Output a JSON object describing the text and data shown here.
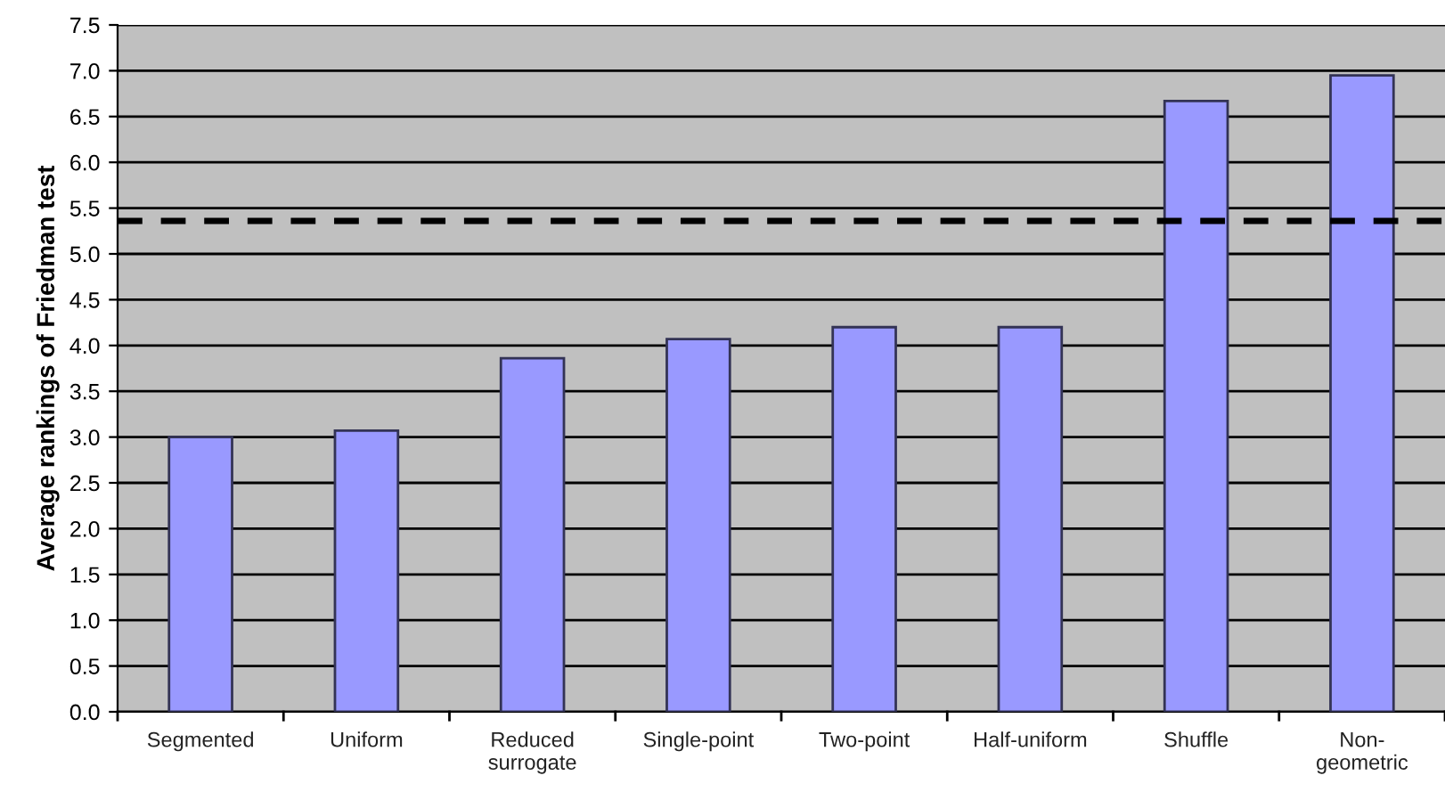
{
  "chart_data": {
    "type": "bar",
    "ylabel": "Average rankings of Friedman test",
    "categories": [
      "Segmented",
      "Uniform",
      "Reduced\nsurrogate",
      "Single-point",
      "Two-point",
      "Half-uniform",
      "Shuffle",
      "Non-\ngeometric"
    ],
    "values": [
      3.0,
      3.07,
      3.86,
      4.07,
      4.2,
      4.2,
      6.67,
      6.95
    ],
    "color": "#9999ff",
    "ylim": [
      0,
      7.5
    ],
    "yticks": [
      {
        "value": 0,
        "label": "0.0"
      },
      {
        "value": 0.5,
        "label": "0.5"
      },
      {
        "value": 1,
        "label": "1.0"
      },
      {
        "value": 1.5,
        "label": "1.5"
      },
      {
        "value": 2,
        "label": "2.0"
      },
      {
        "value": 2.5,
        "label": "2.5"
      },
      {
        "value": 3,
        "label": "3.0"
      },
      {
        "value": 3.5,
        "label": "3.5"
      },
      {
        "value": 4,
        "label": "4.0"
      },
      {
        "value": 4.5,
        "label": "4.5"
      },
      {
        "value": 5,
        "label": "5.0"
      },
      {
        "value": 5.5,
        "label": "5.5"
      },
      {
        "value": 6,
        "label": "6.0"
      },
      {
        "value": 6.5,
        "label": "6.5"
      },
      {
        "value": 7,
        "label": "7.0"
      },
      {
        "value": 7.5,
        "label": "7.5"
      }
    ],
    "grid": "y",
    "ref_lines": [
      {
        "axis": "y",
        "value": 5.36,
        "color": "#000000",
        "line_style": "dashed"
      }
    ]
  }
}
